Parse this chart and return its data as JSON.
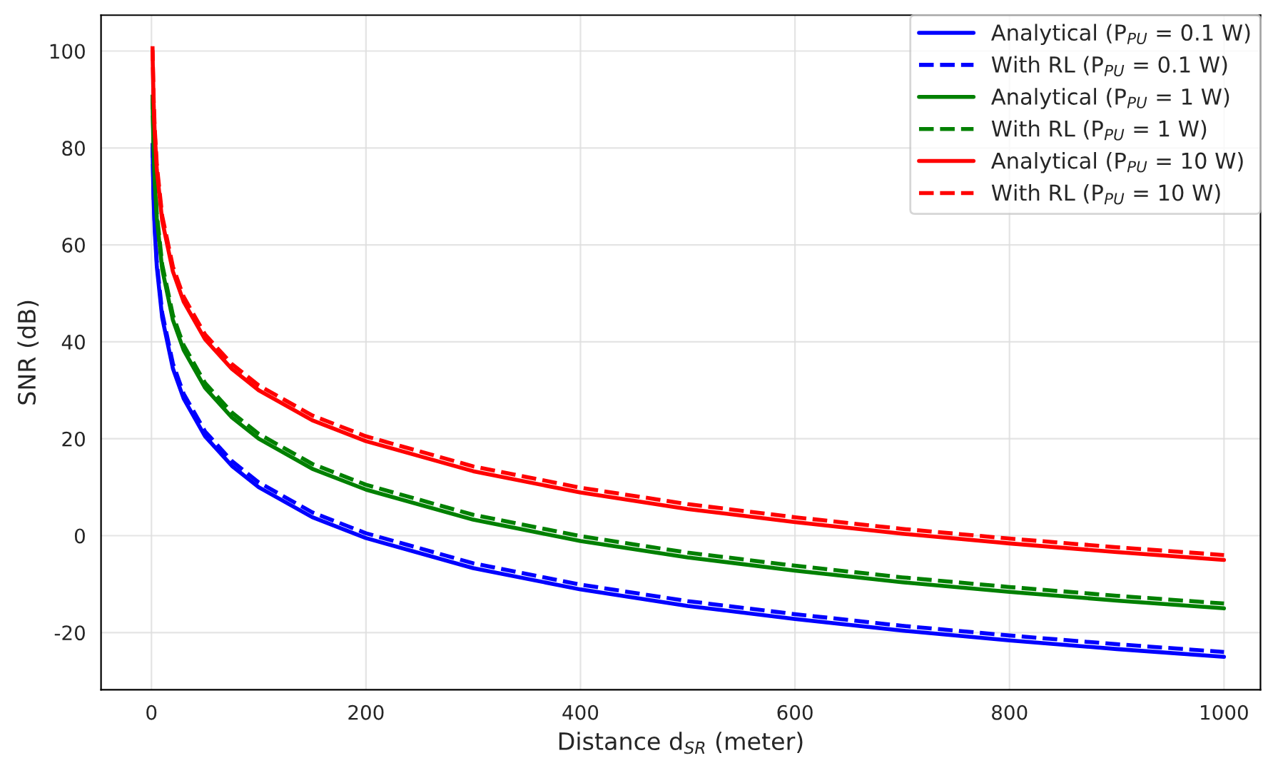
{
  "chart_data": {
    "type": "line",
    "xlabel": "Distance d$_{SR}$ (meter)",
    "ylabel": "SNR (dB)",
    "xlim": [
      -47,
      1034
    ],
    "ylim": [
      -31.8,
      107.4
    ],
    "xticks": [
      0,
      200,
      400,
      600,
      800,
      1000
    ],
    "yticks": [
      -20,
      0,
      20,
      40,
      60,
      80,
      100
    ],
    "grid": true,
    "legend": "top right",
    "x": [
      1,
      2,
      3,
      5,
      10,
      20,
      30,
      50,
      75,
      100,
      150,
      200,
      300,
      400,
      500,
      600,
      700,
      800,
      900,
      1000
    ],
    "series": [
      {
        "name": "Analytical (P$_{PU}$ = 0.1 W)",
        "color": "#0000ff",
        "line_style": "solid",
        "values": [
          80,
          69.5,
          63.3,
          55.5,
          45,
          34.5,
          28.3,
          20.5,
          14.4,
          10,
          3.8,
          -0.5,
          -6.7,
          -11.1,
          -14.5,
          -17.2,
          -19.6,
          -21.6,
          -23.4,
          -25
        ]
      },
      {
        "name": "With RL (P$_{PU}$ = 0.1 W)",
        "color": "#0000ff",
        "line_style": "dashed",
        "values": [
          81,
          70.5,
          64.3,
          56.5,
          46,
          35.5,
          29.3,
          21.5,
          15.4,
          11,
          4.8,
          0.5,
          -5.7,
          -10.1,
          -13.5,
          -16.2,
          -18.6,
          -20.6,
          -22.4,
          -24
        ]
      },
      {
        "name": "Analytical (P$_{PU}$ = 1 W)",
        "color": "#008000",
        "line_style": "solid",
        "values": [
          90,
          79.5,
          73.3,
          65.5,
          55,
          44.5,
          38.3,
          30.5,
          24.4,
          20,
          13.8,
          9.5,
          3.3,
          -1.1,
          -4.5,
          -7.2,
          -9.6,
          -11.6,
          -13.4,
          -15
        ]
      },
      {
        "name": "With RL (P$_{PU}$ = 1 W)",
        "color": "#008000",
        "line_style": "dashed",
        "values": [
          91,
          80.5,
          74.3,
          66.5,
          56,
          45.5,
          39.3,
          31.5,
          25.4,
          21,
          14.8,
          10.5,
          4.3,
          -0.1,
          -3.5,
          -6.2,
          -8.6,
          -10.6,
          -12.4,
          -14
        ]
      },
      {
        "name": "Analytical (P$_{PU}$ = 10 W)",
        "color": "#ff0000",
        "line_style": "solid",
        "values": [
          100,
          89.5,
          83.3,
          75.5,
          65,
          54.5,
          48.3,
          40.5,
          34.4,
          30,
          23.8,
          19.5,
          13.3,
          8.9,
          5.5,
          2.8,
          0.4,
          -1.6,
          -3.4,
          -5
        ]
      },
      {
        "name": "With RL (P$_{PU}$ = 10 W)",
        "color": "#ff0000",
        "line_style": "dashed",
        "values": [
          101,
          90.5,
          84.3,
          76.5,
          66,
          55.5,
          49.3,
          41.5,
          35.4,
          31,
          24.8,
          20.5,
          14.3,
          9.9,
          6.5,
          3.8,
          1.4,
          -0.6,
          -2.4,
          -4
        ]
      }
    ]
  }
}
